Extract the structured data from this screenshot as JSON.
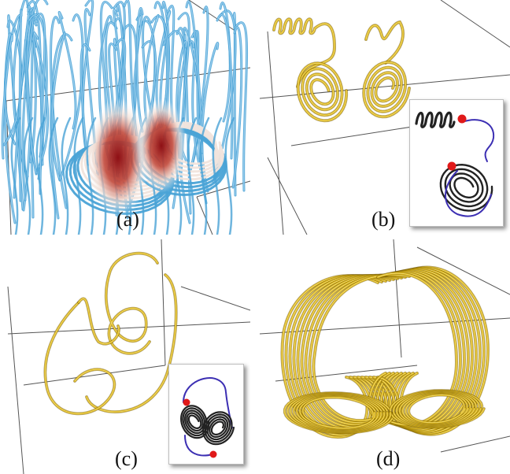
{
  "figure": {
    "panels": [
      {
        "id": "a",
        "label": "(a)",
        "stream_color": "#4aa3d6",
        "core_color": "#a3181d"
      },
      {
        "id": "b",
        "label": "(b)",
        "stream_color": "#d9b215",
        "inset_line": "#222222",
        "inset_link": "#3c2fb3",
        "seed_color": "#e01919"
      },
      {
        "id": "c",
        "label": "(c)",
        "stream_color": "#d9b215",
        "inset_line": "#222222",
        "inset_link": "#3c2fb3",
        "seed_color": "#e01919"
      },
      {
        "id": "d",
        "label": "(d)",
        "stream_color": "#d9b215"
      }
    ],
    "box_edge_color": "#555555"
  }
}
